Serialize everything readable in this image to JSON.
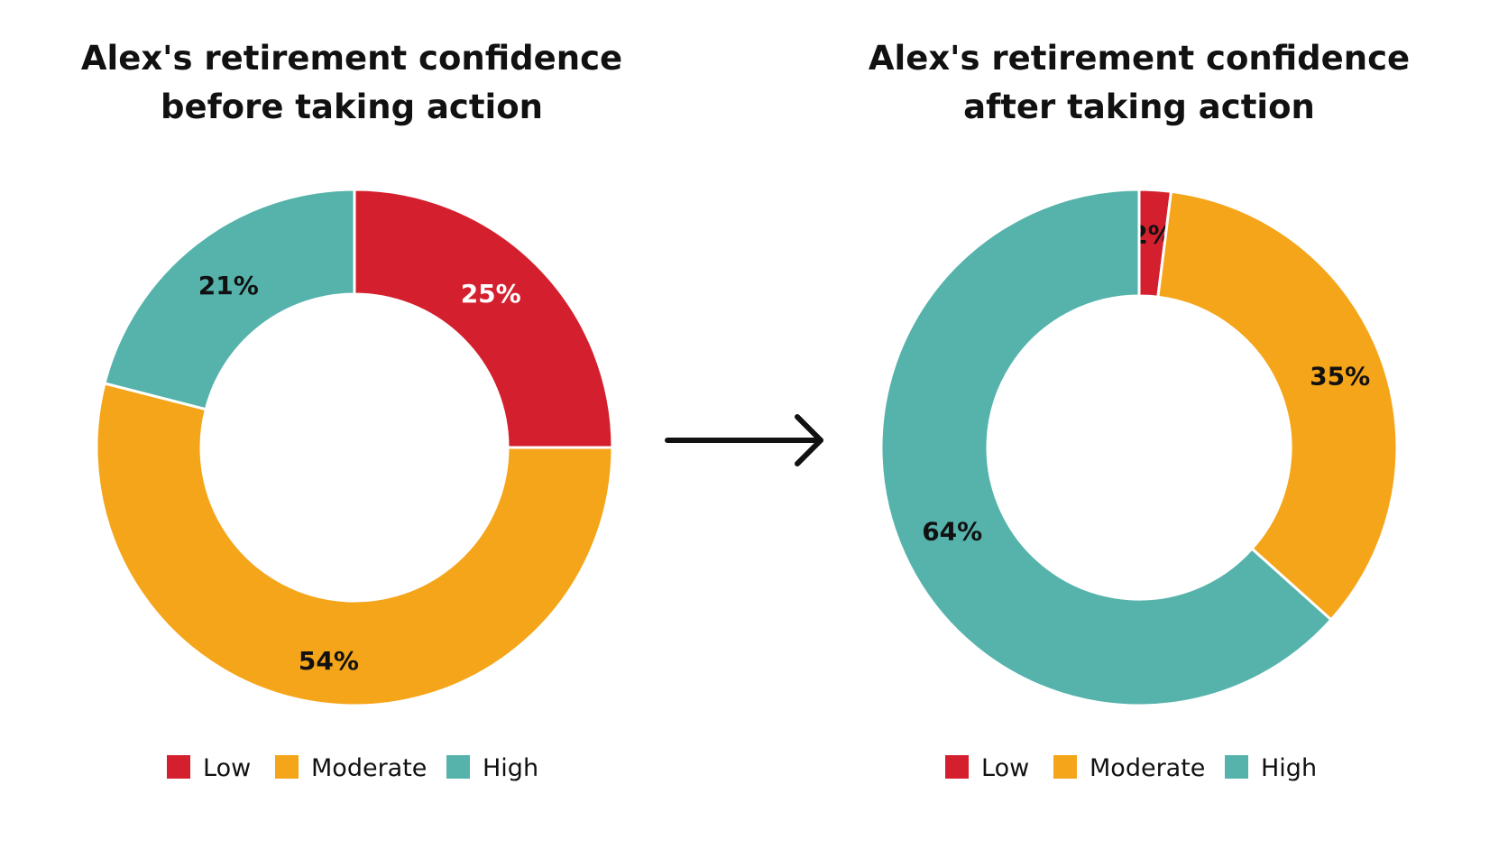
{
  "chart_data": [
    {
      "type": "pie",
      "variant": "donut",
      "title": [
        "Alex's retirement confidence",
        "before taking action"
      ],
      "categories": [
        "Low",
        "Moderate",
        "High"
      ],
      "values": [
        25,
        54,
        21
      ],
      "labels": [
        "25%",
        "54%",
        "21%"
      ],
      "colors": [
        "#d4202e",
        "#f5a519",
        "#55b3ac"
      ],
      "label_colors": [
        "#ffffff",
        "#111111",
        "#111111"
      ],
      "start_angle": "12 o'clock, clockwise",
      "legend": "bottom"
    },
    {
      "type": "pie",
      "variant": "donut",
      "title": [
        "Alex's retirement confidence",
        "after taking action"
      ],
      "categories": [
        "Low",
        "Moderate",
        "High"
      ],
      "values": [
        2,
        35,
        64
      ],
      "labels": [
        "2%",
        "35%",
        "64%"
      ],
      "colors": [
        "#d4202e",
        "#f5a519",
        "#55b3ac"
      ],
      "label_colors": [
        "#111111",
        "#111111",
        "#111111"
      ],
      "start_angle": "12 o'clock, clockwise",
      "legend": "bottom"
    }
  ],
  "connector": {
    "icon": "right-arrow-icon"
  }
}
